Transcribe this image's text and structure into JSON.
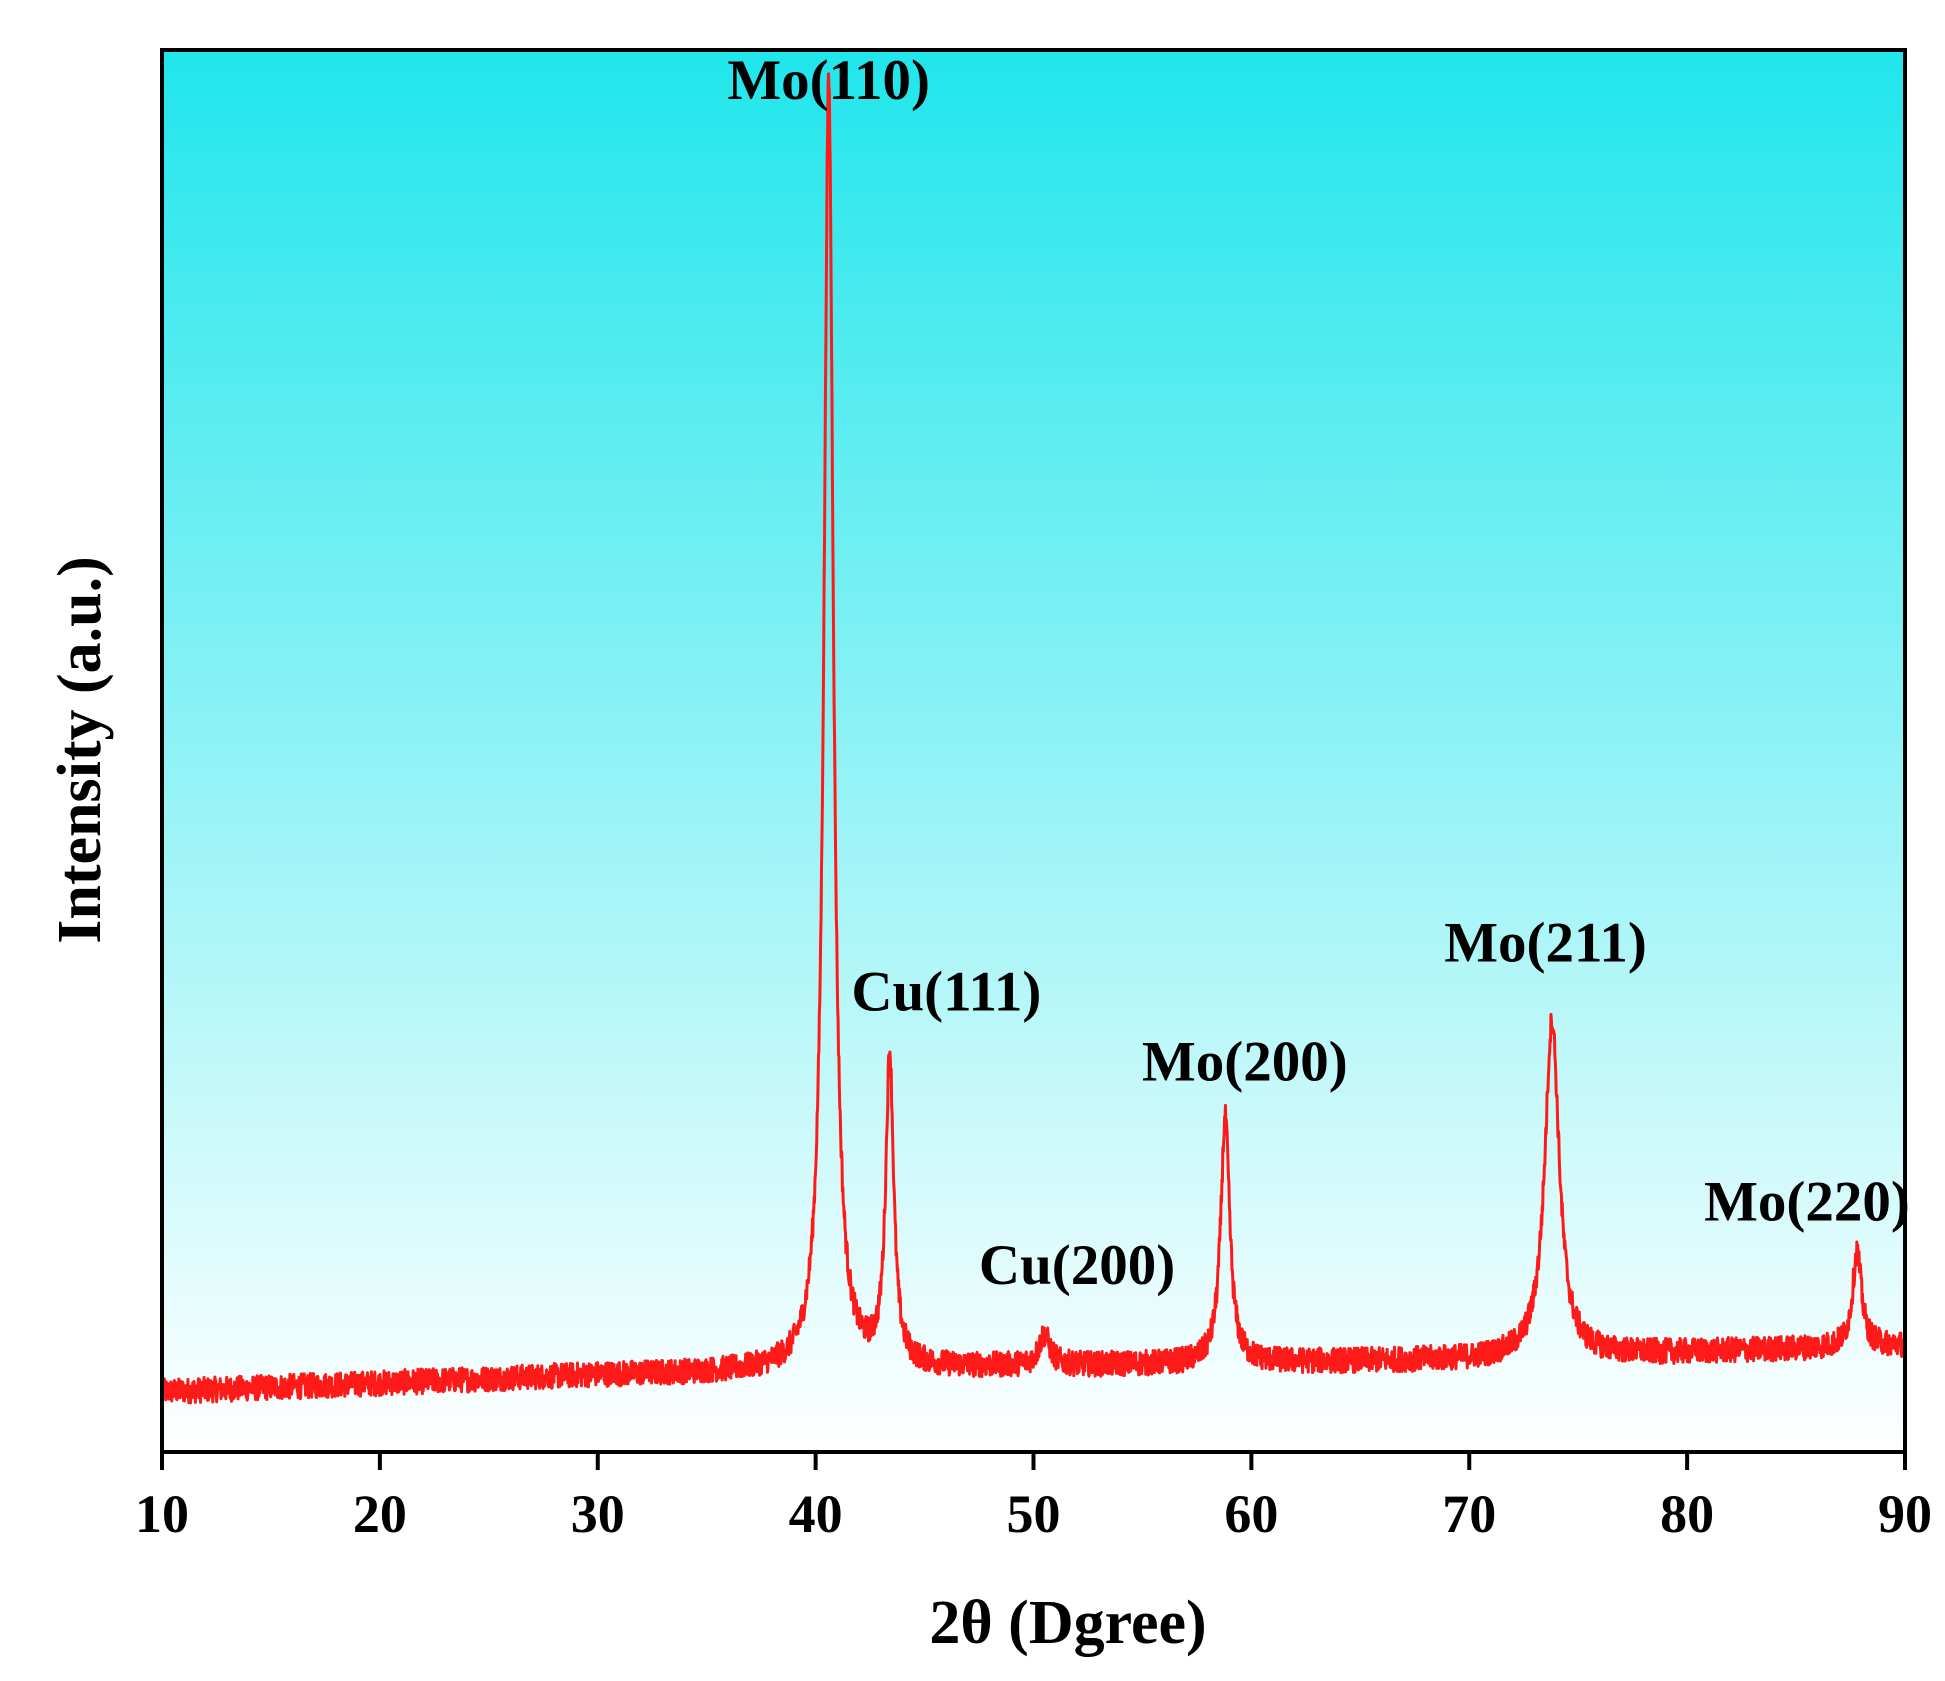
{
  "chart_data": {
    "type": "line",
    "title": "",
    "xlabel": "2θ (Dgree)",
    "ylabel": "Intensity (a.u.)",
    "xlim": [
      10,
      90
    ],
    "ylim": [
      0,
      100
    ],
    "x_ticks": [
      10,
      20,
      30,
      40,
      50,
      60,
      70,
      80,
      90
    ],
    "y_ticks_shown": false,
    "grid": false,
    "background": {
      "gradient_top": "#20e6ec",
      "gradient_bottom": "#ffffff"
    },
    "series": [
      {
        "color": "#ff1a1a",
        "baseline": {
          "x": [
            10,
            30,
            50,
            70,
            90
          ],
          "y": [
            4.3,
            5.5,
            6.1,
            6.6,
            7.6
          ]
        },
        "peaks": [
          {
            "x": 40.6,
            "height": 91.8,
            "width": 0.26
          },
          {
            "x": 43.4,
            "height": 22.0,
            "width": 0.22
          },
          {
            "x": 50.5,
            "height": 2.2,
            "width": 0.3
          },
          {
            "x": 58.8,
            "height": 17.5,
            "width": 0.25
          },
          {
            "x": 73.8,
            "height": 24.0,
            "width": 0.4
          },
          {
            "x": 87.8,
            "height": 6.8,
            "width": 0.25
          }
        ],
        "noise_amplitude": 0.9
      }
    ],
    "annotations": [
      {
        "text": "Mo(110)",
        "x": 40.6,
        "y": 96.5
      },
      {
        "text": "Cu(111)",
        "x": 46.0,
        "y": 31.5
      },
      {
        "text": "Cu(200)",
        "x": 52.0,
        "y": 12.0
      },
      {
        "text": "Mo(200)",
        "x": 59.7,
        "y": 26.5
      },
      {
        "text": "Mo(211)",
        "x": 73.5,
        "y": 35.0
      },
      {
        "text": "Mo(220)",
        "x": 85.5,
        "y": 16.5
      }
    ]
  }
}
